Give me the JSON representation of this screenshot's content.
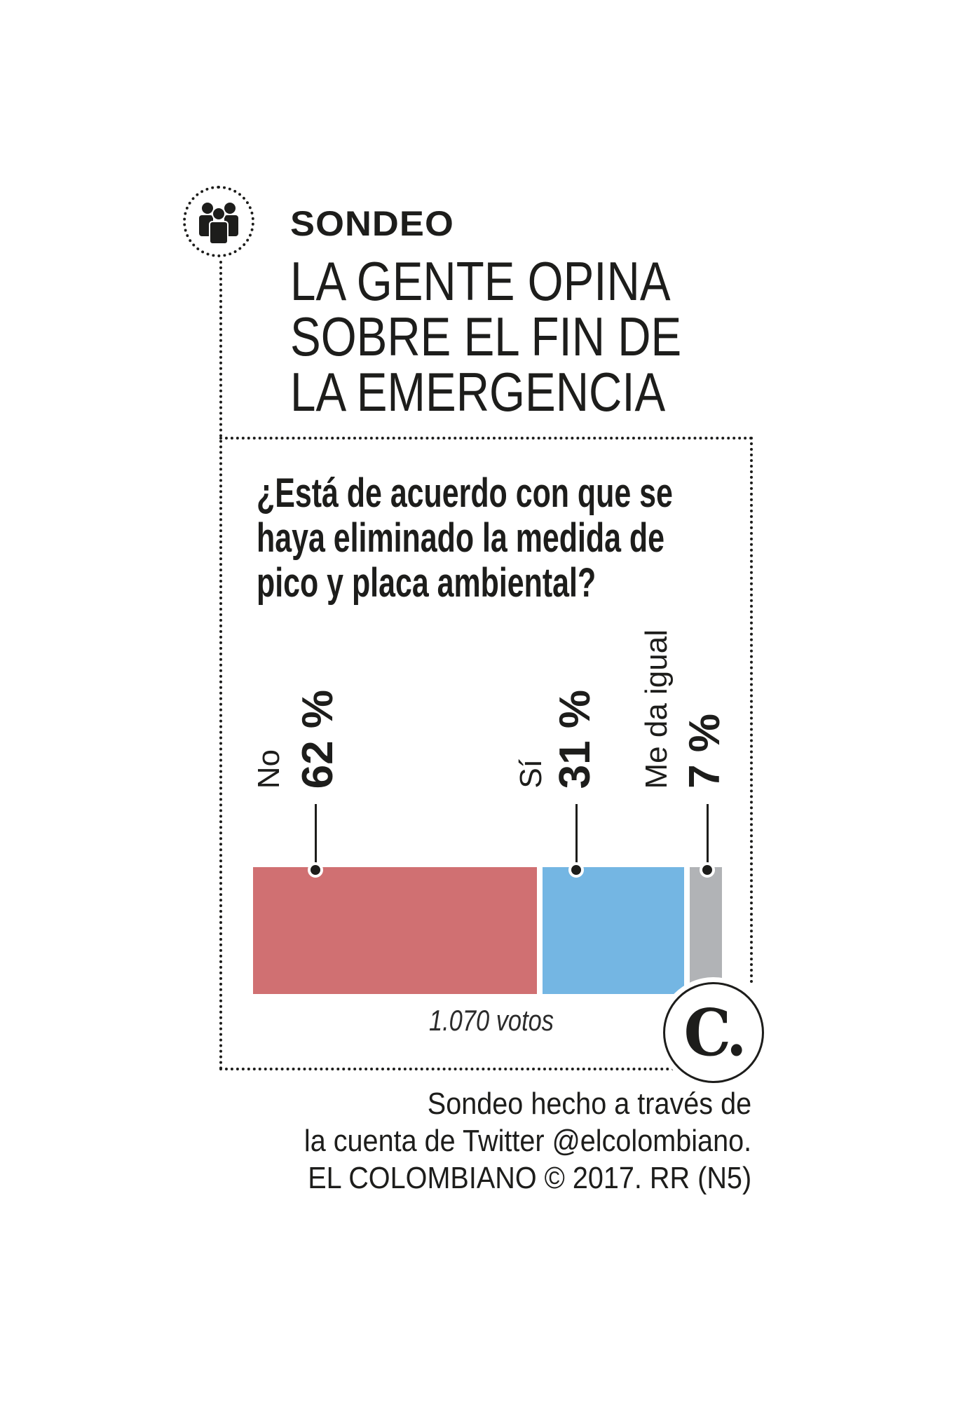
{
  "header": {
    "icon": "people-group-icon",
    "kicker": "SONDEO",
    "title_lines": [
      "LA GENTE OPINA",
      "SOBRE EL FIN DE",
      "LA EMERGENCIA"
    ]
  },
  "question_lines": [
    "¿Está de acuerdo con que se",
    "haya eliminado la medida de",
    "pico y placa ambiental?"
  ],
  "chart_data": {
    "type": "bar",
    "orientation": "horizontal-stacked",
    "categories": [
      "No",
      "Sí",
      "Me da igual"
    ],
    "values": [
      62,
      31,
      7
    ],
    "value_labels": [
      "62 %",
      "31 %",
      "7 %"
    ],
    "unit": "%",
    "colors": [
      "#d07072",
      "#74b6e3",
      "#b1b3b6"
    ],
    "total_label": "1.070 votos",
    "grid": false
  },
  "logo": {
    "text": "C.",
    "name": "el-colombiano-logo"
  },
  "footer_lines": [
    "Sondeo hecho a través de",
    "la cuenta de Twitter @elcolombiano.",
    "EL COLOMBIANO © 2017. RR (N5)"
  ]
}
